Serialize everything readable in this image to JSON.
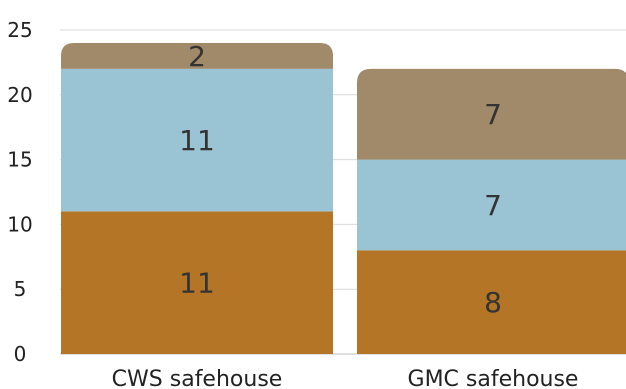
{
  "chart_data": {
    "type": "bar",
    "stacked": true,
    "categories": [
      "CWS safehouse",
      "GMC safehouse"
    ],
    "series": [
      {
        "values": [
          11,
          8
        ],
        "color": "#B47626"
      },
      {
        "values": [
          11,
          7
        ],
        "color": "#9AC4D4"
      },
      {
        "values": [
          2,
          7
        ],
        "color": "#A18A6A"
      }
    ],
    "ylim": [
      0,
      25
    ],
    "yticks": [
      0,
      5,
      10,
      15,
      20,
      25
    ],
    "grid": true,
    "legend": "none",
    "title": "",
    "xlabel": "",
    "ylabel": ""
  }
}
